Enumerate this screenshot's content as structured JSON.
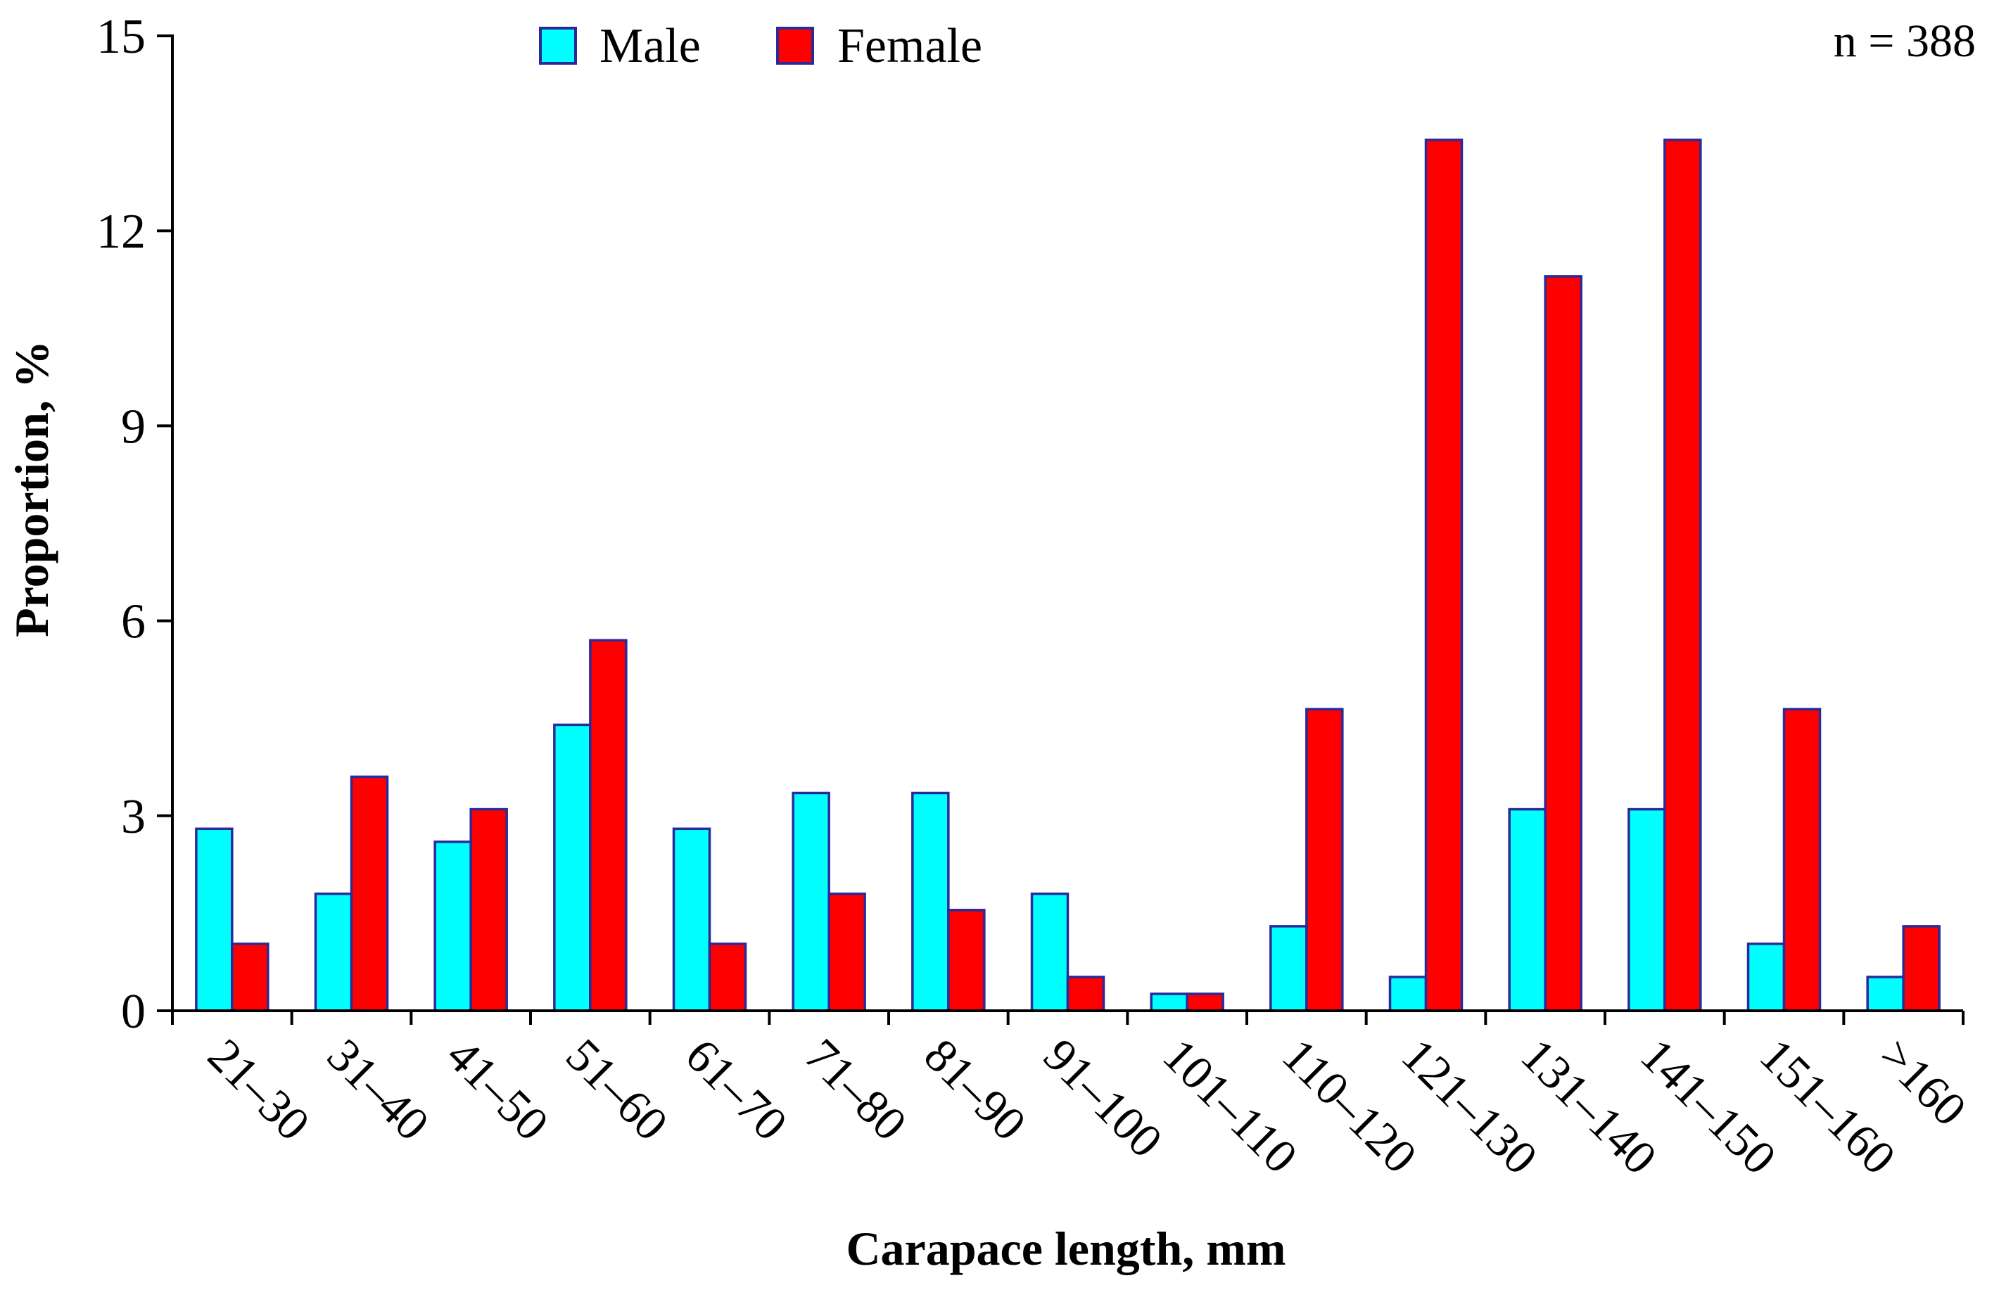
{
  "chart_data": {
    "type": "bar",
    "title": "",
    "xlabel": "Carapace length, mm",
    "ylabel": "Proportion, %",
    "ylim": [
      0,
      15
    ],
    "yticks": [
      0,
      3,
      6,
      9,
      12,
      15
    ],
    "categories": [
      "21–30",
      "31–40",
      "41–50",
      "51–60",
      "61–70",
      "71–80",
      "81–90",
      "91–100",
      "101–110",
      "110–120",
      "121–130",
      "131–140",
      "141–150",
      "151–160",
      ">160"
    ],
    "series": [
      {
        "name": "Male",
        "color": "#00ffff",
        "values": [
          2.8,
          1.8,
          2.6,
          4.4,
          2.8,
          3.35,
          3.35,
          1.8,
          0.26,
          1.3,
          0.52,
          3.1,
          3.1,
          1.03,
          0.52
        ]
      },
      {
        "name": "Female",
        "color": "#ff0000",
        "values": [
          1.03,
          3.6,
          3.1,
          5.7,
          1.03,
          1.8,
          1.55,
          0.52,
          0.26,
          4.64,
          13.4,
          11.3,
          13.4,
          4.64,
          1.3
        ]
      }
    ],
    "bar_edge_color": "#2a2a9a",
    "legend_position": "top-center",
    "annotation": "n = 388"
  }
}
